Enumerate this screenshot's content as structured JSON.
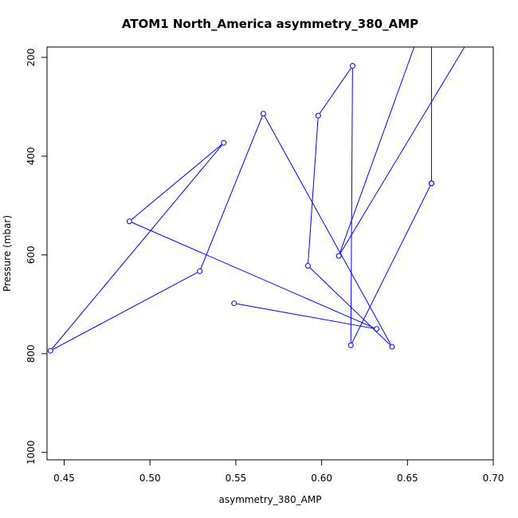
{
  "chart_data": {
    "type": "line",
    "title": "ATOM1 North_America asymmetry_380_AMP",
    "xlabel": "asymmetry_380_AMP",
    "ylabel": "Pressure (mbar)",
    "xlim": [
      0.44,
      0.7
    ],
    "ylim": [
      1000,
      200
    ],
    "y_reversed": true,
    "grid": false,
    "x_ticks": [
      0.45,
      0.5,
      0.55,
      0.6,
      0.65,
      0.7
    ],
    "x_tick_labels": [
      "0.45",
      "0.50",
      "0.55",
      "0.60",
      "0.65",
      "0.70"
    ],
    "y_ticks": [
      200,
      400,
      600,
      800,
      1000
    ],
    "y_tick_labels": [
      "200",
      "400",
      "600",
      "800",
      "1000"
    ],
    "series": [
      {
        "color": "#0000ff",
        "marker": "open-circle",
        "points": [
          {
            "x": 0.664,
            "y": 455
          },
          {
            "x": 0.617,
            "y": 783
          },
          {
            "x": 0.618,
            "y": 217
          },
          {
            "x": 0.598,
            "y": 318
          },
          {
            "x": 0.592,
            "y": 622
          },
          {
            "x": 0.641,
            "y": 786
          },
          {
            "x": 0.566,
            "y": 314
          },
          {
            "x": 0.529,
            "y": 633
          },
          {
            "x": 0.442,
            "y": 794
          },
          {
            "x": 0.543,
            "y": 373
          },
          {
            "x": 0.488,
            "y": 532
          },
          {
            "x": 0.632,
            "y": 750
          },
          {
            "x": 0.549,
            "y": 698
          }
        ]
      },
      {
        "color": "#0000ff",
        "marker": "open-circle",
        "points": [
          {
            "x": 0.664,
            "y": 150
          },
          {
            "x": 0.664,
            "y": 455
          }
        ]
      },
      {
        "color": "#0000ff",
        "marker": "open-circle",
        "points": [
          {
            "x": 0.69,
            "y": 140
          },
          {
            "x": 0.61,
            "y": 602
          },
          {
            "x": 0.66,
            "y": 120
          }
        ]
      }
    ]
  }
}
